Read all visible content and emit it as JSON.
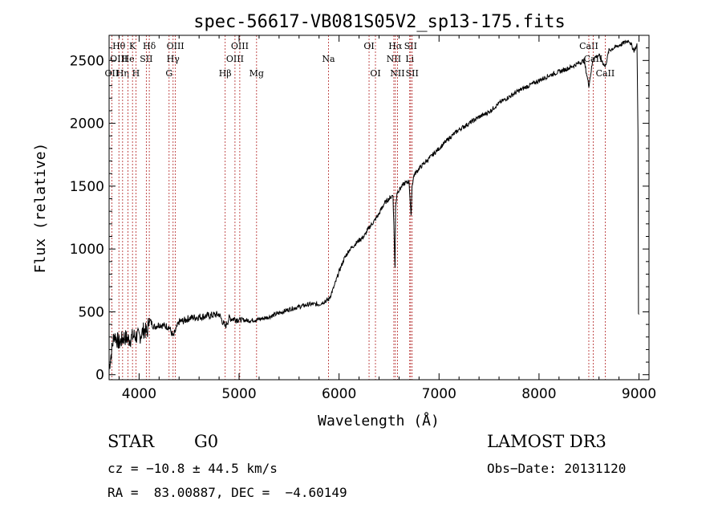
{
  "chart_data": {
    "type": "line",
    "title": "spec-56617-VB081S05V2_sp13-175.fits",
    "xlabel": "Wavelength (Å)",
    "ylabel": "Flux (relative)",
    "xlim": [
      3700,
      9100
    ],
    "ylim": [
      -40,
      2700
    ],
    "xticks": [
      4000,
      5000,
      6000,
      7000,
      8000,
      9000
    ],
    "yticks": [
      0,
      500,
      1000,
      1500,
      2000,
      2500
    ],
    "series": [
      {
        "name": "flux",
        "color": "#000000",
        "x": [
          3700,
          3750,
          3800,
          3850,
          3900,
          3950,
          4000,
          4050,
          4080,
          4100,
          4150,
          4200,
          4250,
          4300,
          4340,
          4400,
          4450,
          4500,
          4600,
          4700,
          4800,
          4861,
          4900,
          5000,
          5100,
          5200,
          5300,
          5400,
          5500,
          5600,
          5700,
          5800,
          5850,
          5900,
          5950,
          6000,
          6050,
          6100,
          6150,
          6200,
          6250,
          6300,
          6350,
          6400,
          6450,
          6500,
          6540,
          6560,
          6565,
          6580,
          6600,
          6650,
          6700,
          6720,
          6730,
          6750,
          6800,
          6900,
          7000,
          7100,
          7200,
          7300,
          7400,
          7500,
          7600,
          7700,
          7800,
          7900,
          8000,
          8100,
          8200,
          8300,
          8400,
          8450,
          8498,
          8542,
          8600,
          8662,
          8700,
          8750,
          8800,
          8850,
          8900,
          8950,
          8980,
          8990,
          8995,
          9000
        ],
        "y": [
          60,
          320,
          250,
          300,
          280,
          310,
          300,
          360,
          330,
          440,
          380,
          400,
          390,
          380,
          300,
          420,
          430,
          450,
          460,
          470,
          480,
          380,
          450,
          440,
          430,
          440,
          460,
          490,
          520,
          540,
          560,
          560,
          580,
          600,
          700,
          820,
          920,
          990,
          1030,
          1070,
          1100,
          1170,
          1220,
          1280,
          1360,
          1400,
          1430,
          850,
          1330,
          1450,
          1470,
          1520,
          1540,
          1250,
          1500,
          1590,
          1640,
          1720,
          1800,
          1880,
          1950,
          2000,
          2050,
          2090,
          2160,
          2210,
          2260,
          2300,
          2340,
          2380,
          2410,
          2440,
          2480,
          2500,
          2300,
          2520,
          2540,
          2450,
          2580,
          2600,
          2620,
          2640,
          2660,
          2580,
          2620,
          1900,
          500,
          480
        ]
      }
    ],
    "line_color": "#b22222",
    "lines": [
      {
        "wl": 3727,
        "labels": [
          {
            "t": "OII",
            "row": 2
          }
        ]
      },
      {
        "wl": 3798,
        "labels": [
          {
            "t": "Hθ",
            "row": 0
          },
          {
            "t": "OIII",
            "row": 1
          }
        ]
      },
      {
        "wl": 3835,
        "labels": [
          {
            "t": "Hη",
            "row": 2
          }
        ]
      },
      {
        "wl": 3889,
        "labels": [
          {
            "t": "He",
            "row": 1
          }
        ]
      },
      {
        "wl": 3934,
        "labels": [
          {
            "t": "K",
            "row": 0
          }
        ]
      },
      {
        "wl": 3968,
        "labels": [
          {
            "t": "H",
            "row": 2
          }
        ]
      },
      {
        "wl": 4072,
        "labels": [
          {
            "t": "SII",
            "row": 1
          }
        ]
      },
      {
        "wl": 4102,
        "labels": [
          {
            "t": "Hδ",
            "row": 0
          }
        ]
      },
      {
        "wl": 4300,
        "labels": [
          {
            "t": "G",
            "row": 2
          }
        ]
      },
      {
        "wl": 4340,
        "labels": [
          {
            "t": "Hγ",
            "row": 1
          }
        ]
      },
      {
        "wl": 4363,
        "labels": [
          {
            "t": "OIII",
            "row": 0
          }
        ]
      },
      {
        "wl": 4861,
        "labels": [
          {
            "t": "Hβ",
            "row": 2
          }
        ]
      },
      {
        "wl": 4959,
        "labels": [
          {
            "t": "OIII",
            "row": 1
          }
        ]
      },
      {
        "wl": 5007,
        "labels": [
          {
            "t": "OIII",
            "row": 0
          }
        ]
      },
      {
        "wl": 5175,
        "labels": [
          {
            "t": "Mg",
            "row": 2
          }
        ]
      },
      {
        "wl": 5894,
        "labels": [
          {
            "t": "Na",
            "row": 1
          }
        ]
      },
      {
        "wl": 6300,
        "labels": [
          {
            "t": "OI",
            "row": 0
          }
        ]
      },
      {
        "wl": 6364,
        "labels": [
          {
            "t": "OI",
            "row": 2
          }
        ]
      },
      {
        "wl": 6548,
        "labels": [
          {
            "t": "NII",
            "row": 1
          }
        ]
      },
      {
        "wl": 6563,
        "labels": [
          {
            "t": "Hα",
            "row": 0
          }
        ]
      },
      {
        "wl": 6584,
        "labels": [
          {
            "t": "NII",
            "row": 2
          }
        ]
      },
      {
        "wl": 6707,
        "labels": [
          {
            "t": "Li",
            "row": 1
          }
        ]
      },
      {
        "wl": 6716,
        "labels": [
          {
            "t": "SII",
            "row": 0
          }
        ]
      },
      {
        "wl": 6731,
        "labels": [
          {
            "t": "SII",
            "row": 2
          }
        ]
      },
      {
        "wl": 8498,
        "labels": [
          {
            "t": "CaII",
            "row": 0
          }
        ]
      },
      {
        "wl": 8542,
        "labels": [
          {
            "t": "CaII",
            "row": 1
          }
        ]
      },
      {
        "wl": 8662,
        "labels": [
          {
            "t": "CaII",
            "row": 2
          }
        ]
      }
    ]
  },
  "info": {
    "object_type": "STAR",
    "subclass": "G0",
    "survey": "LAMOST DR3",
    "redshift": "cz = −10.8 ± 44.5 km/s",
    "obs_date": "Obs−Date: 20131120",
    "coords": "RA =  83.00887, DEC =  −4.60149"
  }
}
